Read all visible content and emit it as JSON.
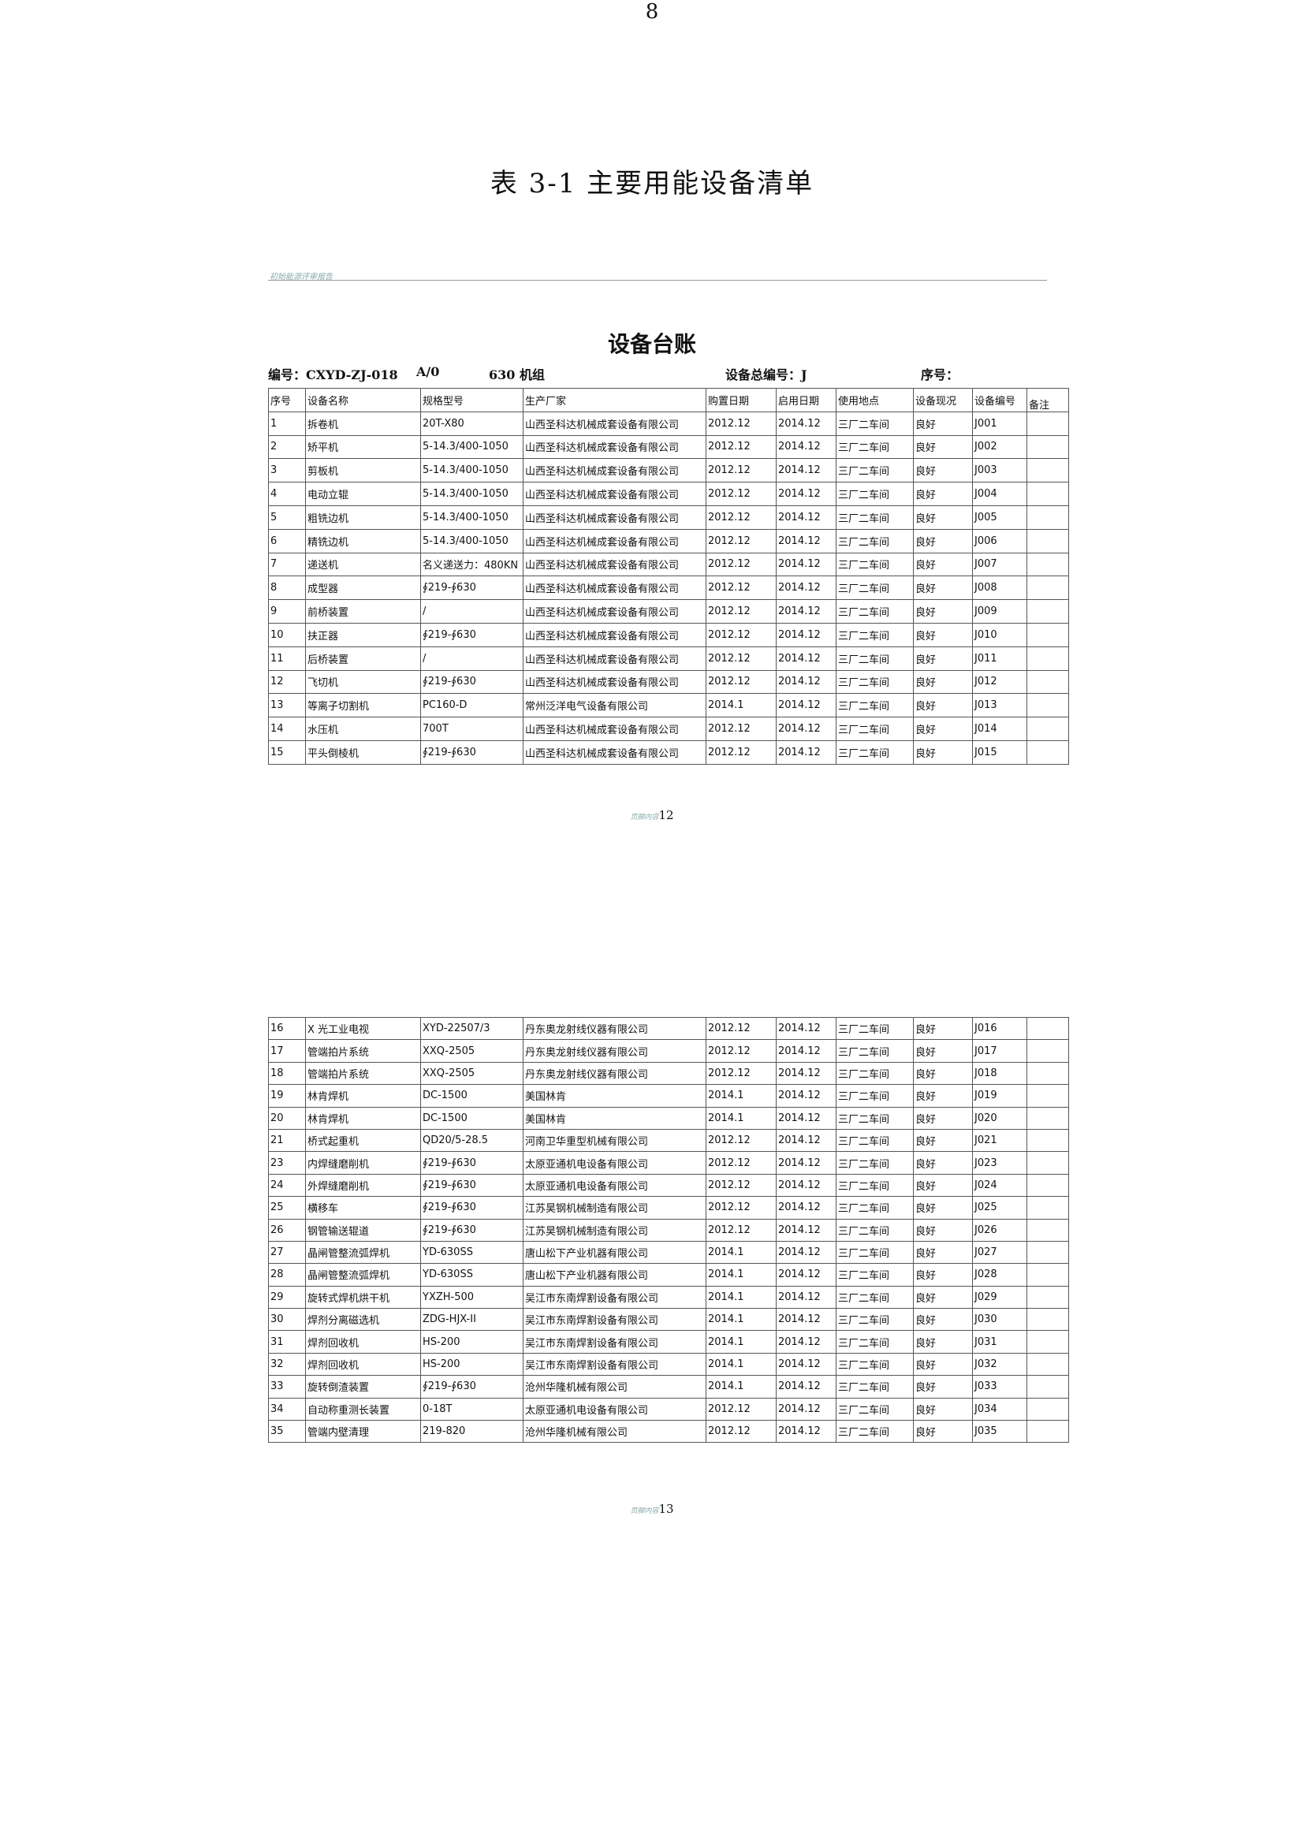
{
  "title": "表 3-1  主要用能设备清单",
  "header_text": "初始能源评审报告",
  "sheet_title": "设备台账",
  "info": {
    "code": "编号：CXYD-ZJ-018",
    "rev": "A/0",
    "unit": "630 机组",
    "total_no": "设备总编号：J",
    "seq": "序号："
  },
  "columns": [
    "序号",
    "设备名称",
    "规格型号",
    "生产厂家",
    "购置日期",
    "启用日期",
    "使用地点",
    "设备现况",
    "设备编号",
    "备注"
  ],
  "table1": [
    [
      "1",
      "拆卷机",
      "20T-X80",
      "山西圣科达机械成套设备有限公司",
      "2012.12",
      "2014.12",
      "三厂二车间",
      "良好",
      "J001",
      ""
    ],
    [
      "2",
      "矫平机",
      "5-14.3/400-1050",
      "山西圣科达机械成套设备有限公司",
      "2012.12",
      "2014.12",
      "三厂二车间",
      "良好",
      "J002",
      ""
    ],
    [
      "3",
      "剪板机",
      "5-14.3/400-1050",
      "山西圣科达机械成套设备有限公司",
      "2012.12",
      "2014.12",
      "三厂二车间",
      "良好",
      "J003",
      ""
    ],
    [
      "4",
      "电动立辊",
      "5-14.3/400-1050",
      "山西圣科达机械成套设备有限公司",
      "2012.12",
      "2014.12",
      "三厂二车间",
      "良好",
      "J004",
      ""
    ],
    [
      "5",
      "粗铣边机",
      "5-14.3/400-1050",
      "山西圣科达机械成套设备有限公司",
      "2012.12",
      "2014.12",
      "三厂二车间",
      "良好",
      "J005",
      ""
    ],
    [
      "6",
      "精铣边机",
      "5-14.3/400-1050",
      "山西圣科达机械成套设备有限公司",
      "2012.12",
      "2014.12",
      "三厂二车间",
      "良好",
      "J006",
      ""
    ],
    [
      "7",
      "递送机",
      "名义递送力：480KN",
      "山西圣科达机械成套设备有限公司",
      "2012.12",
      "2014.12",
      "三厂二车间",
      "良好",
      "J007",
      ""
    ],
    [
      "8",
      "成型器",
      "∮219-∮630",
      "山西圣科达机械成套设备有限公司",
      "2012.12",
      "2014.12",
      "三厂二车间",
      "良好",
      "J008",
      ""
    ],
    [
      "9",
      "前桥装置",
      "/",
      "山西圣科达机械成套设备有限公司",
      "2012.12",
      "2014.12",
      "三厂二车间",
      "良好",
      "J009",
      ""
    ],
    [
      "10",
      "扶正器",
      "∮219-∮630",
      "山西圣科达机械成套设备有限公司",
      "2012.12",
      "2014.12",
      "三厂二车间",
      "良好",
      "J010",
      ""
    ],
    [
      "11",
      "后桥装置",
      "/",
      "山西圣科达机械成套设备有限公司",
      "2012.12",
      "2014.12",
      "三厂二车间",
      "良好",
      "J011",
      ""
    ],
    [
      "12",
      "飞切机",
      "∮219-∮630",
      "山西圣科达机械成套设备有限公司",
      "2012.12",
      "2014.12",
      "三厂二车间",
      "良好",
      "J012",
      ""
    ],
    [
      "13",
      "等离子切割机",
      "PC160-D",
      "常州泛洋电气设备有限公司",
      "2014.1",
      "2014.12",
      "三厂二车间",
      "良好",
      "J013",
      ""
    ],
    [
      "14",
      "水压机",
      "700T",
      "山西圣科达机械成套设备有限公司",
      "2012.12",
      "2014.12",
      "三厂二车间",
      "良好",
      "J014",
      ""
    ],
    [
      "15",
      "平头倒棱机",
      "∮219-∮630",
      "山西圣科达机械成套设备有限公司",
      "2012.12",
      "2014.12",
      "三厂二车间",
      "良好",
      "J015",
      ""
    ]
  ],
  "footer1": {
    "label": "页脚内容",
    "num": "12"
  },
  "table2": [
    [
      "16",
      "X 光工业电视",
      "XYD-22507/3",
      "丹东奥龙射线仪器有限公司",
      "2012.12",
      "2014.12",
      "三厂二车间",
      "良好",
      "J016",
      ""
    ],
    [
      "17",
      "管端拍片系统",
      "XXQ-2505",
      "丹东奥龙射线仪器有限公司",
      "2012.12",
      "2014.12",
      "三厂二车间",
      "良好",
      "J017",
      ""
    ],
    [
      "18",
      "管端拍片系统",
      "XXQ-2505",
      "丹东奥龙射线仪器有限公司",
      "2012.12",
      "2014.12",
      "三厂二车间",
      "良好",
      "J018",
      ""
    ],
    [
      "19",
      "林肯焊机",
      "DC-1500",
      "美国林肯",
      "2014.1",
      "2014.12",
      "三厂二车间",
      "良好",
      "J019",
      ""
    ],
    [
      "20",
      "林肯焊机",
      "DC-1500",
      "美国林肯",
      "2014.1",
      "2014.12",
      "三厂二车间",
      "良好",
      "J020",
      ""
    ],
    [
      "21",
      "桥式起重机",
      "QD20/5-28.5",
      "河南卫华重型机械有限公司",
      "2012.12",
      "2014.12",
      "三厂二车间",
      "良好",
      "J021",
      ""
    ],
    [
      "23",
      "内焊缝磨削机",
      "∮219-∮630",
      "太原亚通机电设备有限公司",
      "2012.12",
      "2014.12",
      "三厂二车间",
      "良好",
      "J023",
      ""
    ],
    [
      "24",
      "外焊缝磨削机",
      "∮219-∮630",
      "太原亚通机电设备有限公司",
      "2012.12",
      "2014.12",
      "三厂二车间",
      "良好",
      "J024",
      ""
    ],
    [
      "25",
      "横移车",
      "∮219-∮630",
      "江苏昊钢机械制造有限公司",
      "2012.12",
      "2014.12",
      "三厂二车间",
      "良好",
      "J025",
      ""
    ],
    [
      "26",
      "钢管输送辊道",
      "∮219-∮630",
      "江苏昊钢机械制造有限公司",
      "2012.12",
      "2014.12",
      "三厂二车间",
      "良好",
      "J026",
      ""
    ],
    [
      "27",
      "晶闸管整流弧焊机",
      "YD-630SS",
      "唐山松下产业机器有限公司",
      "2014.1",
      "2014.12",
      "三厂二车间",
      "良好",
      "J027",
      ""
    ],
    [
      "28",
      "晶闸管整流弧焊机",
      "YD-630SS",
      "唐山松下产业机器有限公司",
      "2014.1",
      "2014.12",
      "三厂二车间",
      "良好",
      "J028",
      ""
    ],
    [
      "29",
      "旋转式焊机烘干机",
      "YXZH-500",
      "吴江市东南焊割设备有限公司",
      "2014.1",
      "2014.12",
      "三厂二车间",
      "良好",
      "J029",
      ""
    ],
    [
      "30",
      "焊剂分离磁选机",
      "ZDG-HJX-II",
      "吴江市东南焊割设备有限公司",
      "2014.1",
      "2014.12",
      "三厂二车间",
      "良好",
      "J030",
      ""
    ],
    [
      "31",
      "焊剂回收机",
      "HS-200",
      "吴江市东南焊割设备有限公司",
      "2014.1",
      "2014.12",
      "三厂二车间",
      "良好",
      "J031",
      ""
    ],
    [
      "32",
      "焊剂回收机",
      "HS-200",
      "吴江市东南焊割设备有限公司",
      "2014.1",
      "2014.12",
      "三厂二车间",
      "良好",
      "J032",
      ""
    ],
    [
      "33",
      "旋转倒渣装置",
      "∮219-∮630",
      "沧州华隆机械有限公司",
      "2014.1",
      "2014.12",
      "三厂二车间",
      "良好",
      "J033",
      ""
    ],
    [
      "34",
      "自动称重测长装置",
      "0-18T",
      "太原亚通机电设备有限公司",
      "2012.12",
      "2014.12",
      "三厂二车间",
      "良好",
      "J034",
      ""
    ],
    [
      "35",
      "管端内壁清理",
      "219-820",
      "沧州华隆机械有限公司",
      "2012.12",
      "2014.12",
      "三厂二车间",
      "良好",
      "J035",
      ""
    ]
  ],
  "footer2": {
    "label": "页脚内容",
    "num": "13"
  },
  "page_number": "8"
}
